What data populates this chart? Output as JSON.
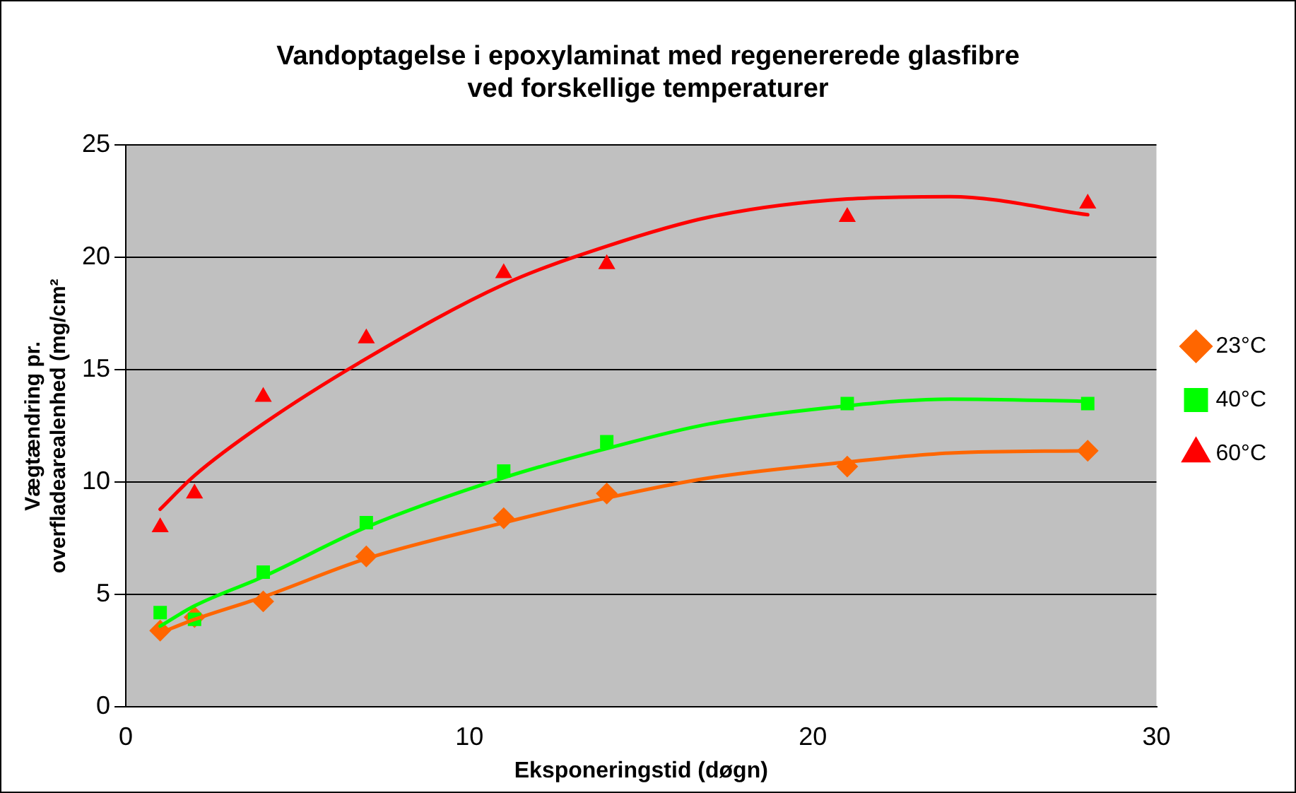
{
  "chart_data": {
    "type": "scatter",
    "title": [
      "Vandoptagelse i epoxylaminat med regenererede glasfibre",
      "ved forskellige temperaturer"
    ],
    "xlabel": "Eksponeringstid (døgn)",
    "ylabel": [
      "Vægtændring pr.",
      "overfladearealenhed (mg/cm²"
    ],
    "x": [
      1,
      2,
      4,
      7,
      11,
      14,
      21,
      28
    ],
    "series": [
      {
        "name": "23°C",
        "color": "#ff6600",
        "marker": "diamond",
        "values": [
          3.4,
          4.0,
          4.7,
          6.7,
          8.4,
          9.5,
          10.7,
          11.4
        ]
      },
      {
        "name": "40°C",
        "color": "#00ff00",
        "marker": "square",
        "values": [
          4.2,
          3.9,
          6.0,
          8.2,
          10.5,
          11.8,
          13.5,
          13.5
        ]
      },
      {
        "name": "60°C",
        "color": "#ff0000",
        "marker": "triangle",
        "values": [
          8.0,
          9.5,
          13.8,
          16.4,
          19.3,
          19.7,
          21.8,
          22.4
        ]
      },
      {
        "type": "line",
        "color": "#ff6600",
        "marker": "none",
        "x": [
          1,
          2,
          4,
          7,
          11,
          14,
          17,
          21,
          24,
          28
        ],
        "values": [
          3.3,
          3.9,
          4.9,
          6.6,
          8.2,
          9.3,
          10.2,
          10.9,
          11.3,
          11.4
        ]
      },
      {
        "type": "line",
        "color": "#00ff00",
        "marker": "none",
        "x": [
          1,
          2,
          4,
          7,
          11,
          14,
          17,
          21,
          24,
          28
        ],
        "values": [
          3.6,
          4.5,
          5.8,
          8.0,
          10.2,
          11.5,
          12.6,
          13.4,
          13.7,
          13.6
        ]
      },
      {
        "type": "line",
        "color": "#ff0000",
        "marker": "none",
        "x": [
          1,
          2,
          4,
          7,
          11,
          14,
          17,
          21,
          24,
          28
        ],
        "values": [
          8.8,
          10.3,
          12.6,
          15.5,
          18.8,
          20.5,
          21.8,
          22.6,
          22.7,
          21.9
        ]
      }
    ],
    "xlim": [
      0,
      30
    ],
    "xticks": [
      0,
      10,
      20,
      30
    ],
    "ylim": [
      0,
      25
    ],
    "yticks": [
      0,
      5,
      10,
      15,
      20,
      25
    ],
    "grid": "y",
    "legend": "right"
  }
}
